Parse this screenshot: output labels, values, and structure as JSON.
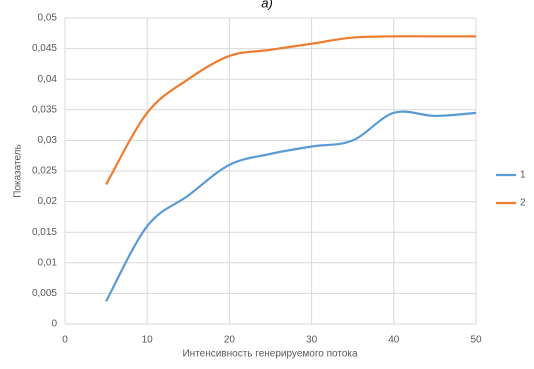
{
  "chart_data": {
    "type": "line",
    "title": "а)",
    "x_label": "Интенсивность генерируемого потока",
    "y_label": "Показатель",
    "x": [
      5,
      10,
      15,
      20,
      25,
      30,
      35,
      40,
      45,
      50
    ],
    "series": [
      {
        "name": "1",
        "color": "#5b9bd5",
        "values": [
          0.0037,
          0.016,
          0.021,
          0.026,
          0.0278,
          0.029,
          0.03,
          0.0345,
          0.034,
          0.0345
        ]
      },
      {
        "name": "2",
        "color": "#ed7d31",
        "values": [
          0.0228,
          0.0345,
          0.04,
          0.0438,
          0.0448,
          0.0458,
          0.0468,
          0.047,
          0.047,
          0.047
        ]
      }
    ],
    "xlim": [
      0,
      50
    ],
    "xticks": [
      0,
      10,
      20,
      30,
      40,
      50
    ],
    "ylim": [
      0,
      0.05
    ],
    "yticks": [
      0,
      {
        "value": 0.005,
        "label": "0,005"
      },
      {
        "value": 0.01,
        "label": "0,01"
      },
      {
        "value": 0.015,
        "label": "0,015"
      },
      {
        "value": 0.02,
        "label": "0,02"
      },
      {
        "value": 0.025,
        "label": "0,025"
      },
      {
        "value": 0.03,
        "label": "0,03"
      },
      {
        "value": 0.035,
        "label": "0,035"
      },
      {
        "value": 0.04,
        "label": "0,04"
      },
      {
        "value": 0.045,
        "label": "0,045"
      },
      {
        "value": 0.05,
        "label": "0,05"
      }
    ],
    "grid": true,
    "legend": "right"
  }
}
